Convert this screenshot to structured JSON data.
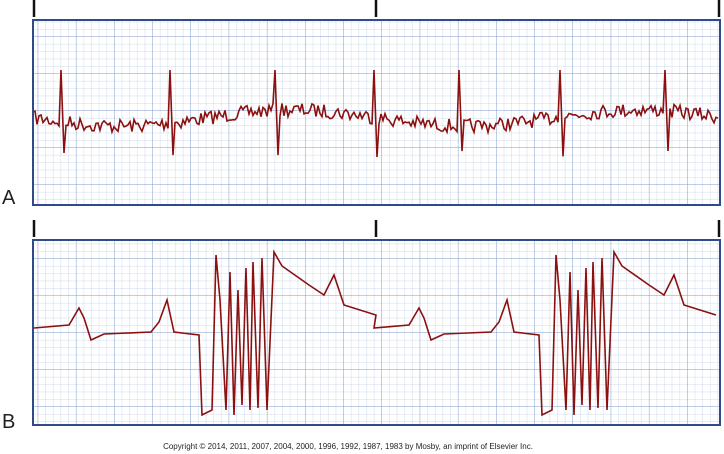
{
  "panels": [
    {
      "label": "A"
    },
    {
      "label": "B"
    }
  ],
  "footer": {
    "copyright": "Copyright © 2014, 2011, 2007, 2004, 2000, 1996, 1992, 1987, 1983 by Mosby, an imprint of Elsevier Inc."
  }
}
